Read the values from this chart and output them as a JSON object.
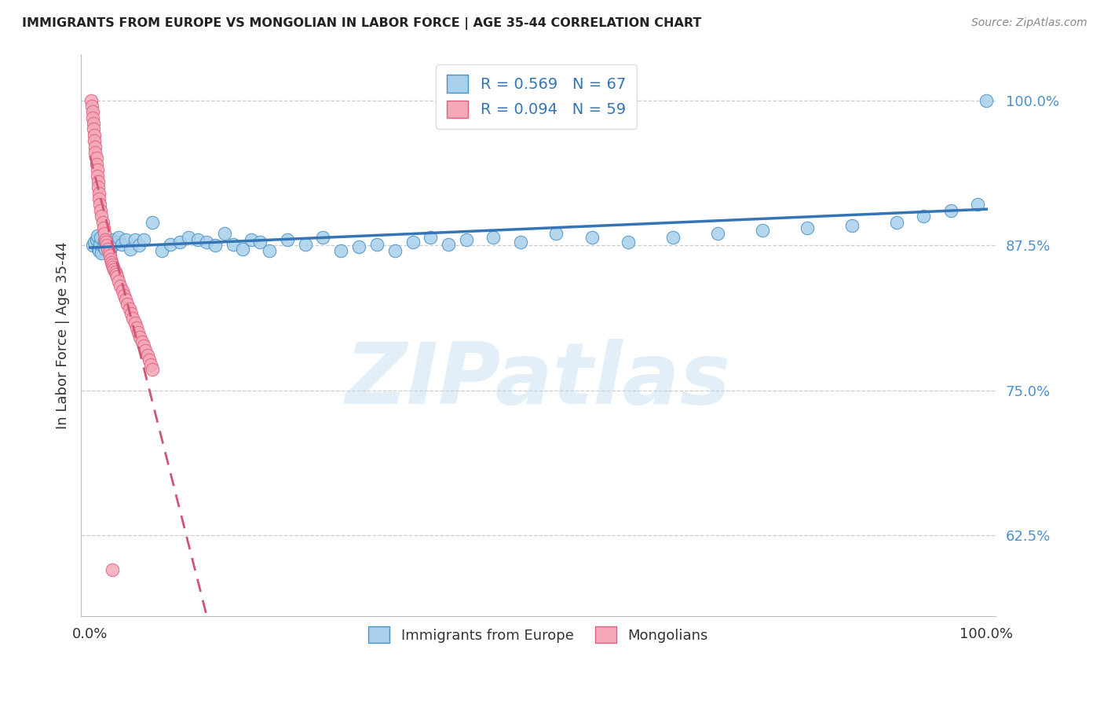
{
  "title": "IMMIGRANTS FROM EUROPE VS MONGOLIAN IN LABOR FORCE | AGE 35-44 CORRELATION CHART",
  "source": "Source: ZipAtlas.com",
  "ylabel": "In Labor Force | Age 35-44",
  "ylim": [
    0.555,
    1.04
  ],
  "xlim": [
    -0.01,
    1.01
  ],
  "blue_R": 0.569,
  "blue_N": 67,
  "pink_R": 0.094,
  "pink_N": 59,
  "blue_color": "#a8d0eb",
  "pink_color": "#f4a8b8",
  "blue_edge_color": "#4a90c4",
  "pink_edge_color": "#e06080",
  "blue_line_color": "#3575b5",
  "pink_line_color": "#d05575",
  "legend_label_blue": "Immigrants from Europe",
  "legend_label_pink": "Mongolians",
  "watermark": "ZIPatlas",
  "ytick_vals": [
    0.625,
    0.75,
    0.875,
    1.0
  ],
  "ytick_labels": [
    "62.5%",
    "75.0%",
    "87.5%",
    "100.0%"
  ],
  "blue_x": [
    0.003,
    0.005,
    0.007,
    0.008,
    0.009,
    0.01,
    0.011,
    0.012,
    0.013,
    0.015,
    0.016,
    0.017,
    0.018,
    0.019,
    0.02,
    0.022,
    0.024,
    0.025,
    0.027,
    0.03,
    0.032,
    0.035,
    0.04,
    0.045,
    0.05,
    0.055,
    0.06,
    0.07,
    0.08,
    0.09,
    0.1,
    0.11,
    0.12,
    0.13,
    0.14,
    0.15,
    0.16,
    0.17,
    0.18,
    0.19,
    0.2,
    0.22,
    0.24,
    0.26,
    0.28,
    0.3,
    0.32,
    0.34,
    0.36,
    0.38,
    0.4,
    0.42,
    0.45,
    0.48,
    0.52,
    0.56,
    0.6,
    0.65,
    0.7,
    0.75,
    0.8,
    0.85,
    0.9,
    0.93,
    0.96,
    0.99,
    1.0
  ],
  "blue_y": [
    0.875,
    0.878,
    0.88,
    0.883,
    0.872,
    0.87,
    0.876,
    0.882,
    0.868,
    0.874,
    0.879,
    0.872,
    0.876,
    0.88,
    0.875,
    0.87,
    0.878,
    0.88,
    0.876,
    0.878,
    0.882,
    0.876,
    0.88,
    0.872,
    0.88,
    0.875,
    0.88,
    0.895,
    0.87,
    0.876,
    0.878,
    0.882,
    0.88,
    0.878,
    0.875,
    0.885,
    0.876,
    0.872,
    0.88,
    0.878,
    0.87,
    0.88,
    0.876,
    0.882,
    0.87,
    0.874,
    0.876,
    0.87,
    0.878,
    0.882,
    0.876,
    0.88,
    0.882,
    0.878,
    0.885,
    0.882,
    0.878,
    0.882,
    0.885,
    0.888,
    0.89,
    0.892,
    0.895,
    0.9,
    0.905,
    0.91,
    1.0
  ],
  "pink_x": [
    0.001,
    0.002,
    0.003,
    0.003,
    0.004,
    0.004,
    0.005,
    0.005,
    0.006,
    0.006,
    0.007,
    0.007,
    0.008,
    0.008,
    0.009,
    0.009,
    0.01,
    0.01,
    0.011,
    0.012,
    0.013,
    0.014,
    0.015,
    0.016,
    0.017,
    0.018,
    0.019,
    0.02,
    0.021,
    0.022,
    0.023,
    0.024,
    0.025,
    0.026,
    0.027,
    0.028,
    0.029,
    0.03,
    0.032,
    0.034,
    0.036,
    0.038,
    0.04,
    0.042,
    0.044,
    0.046,
    0.048,
    0.05,
    0.052,
    0.054,
    0.056,
    0.058,
    0.06,
    0.062,
    0.064,
    0.066,
    0.068,
    0.07,
    0.025
  ],
  "pink_y": [
    1.0,
    0.995,
    0.99,
    0.985,
    0.98,
    0.975,
    0.97,
    0.965,
    0.96,
    0.955,
    0.95,
    0.945,
    0.94,
    0.935,
    0.93,
    0.925,
    0.92,
    0.915,
    0.91,
    0.905,
    0.9,
    0.895,
    0.89,
    0.885,
    0.88,
    0.878,
    0.875,
    0.872,
    0.869,
    0.866,
    0.863,
    0.86,
    0.858,
    0.856,
    0.854,
    0.852,
    0.85,
    0.848,
    0.844,
    0.84,
    0.836,
    0.832,
    0.828,
    0.824,
    0.82,
    0.816,
    0.812,
    0.808,
    0.804,
    0.8,
    0.796,
    0.792,
    0.788,
    0.784,
    0.78,
    0.776,
    0.772,
    0.768,
    0.595
  ]
}
